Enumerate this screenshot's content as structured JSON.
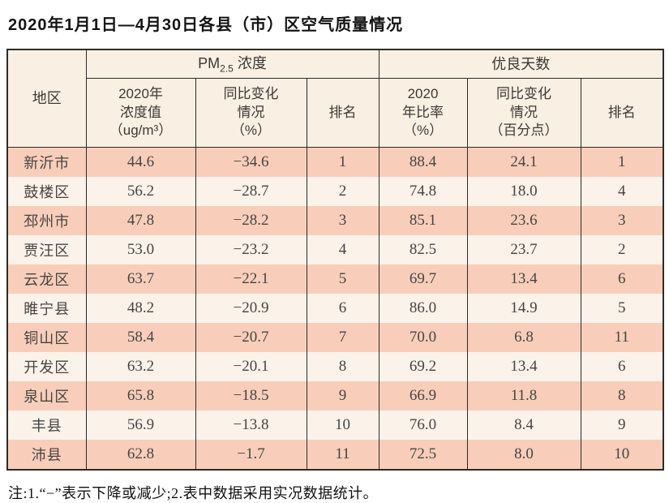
{
  "title": "2020年1月1日—4月30日各县（市）区空气质量情况",
  "table": {
    "headers": {
      "region": "地区",
      "pm_group": {
        "prefix": "PM",
        "sub": "2.5",
        "suffix": " 浓度"
      },
      "good_group": "优良天数",
      "pm_conc": "2020年\n浓度值\n（ug/m³）",
      "pm_change": "同比变化\n情况\n（%）",
      "pm_rank": "排名",
      "good_rate": "2020\n年比率\n（%）",
      "good_change": "同比变化\n情况\n（百分点）",
      "good_rank": "排名"
    },
    "rows": [
      {
        "region": "新沂市",
        "pm_value": "44.6",
        "pm_change": "−34.6",
        "pm_rank": "1",
        "good_rate": "88.4",
        "good_change": "24.1",
        "good_rank": "1"
      },
      {
        "region": "鼓楼区",
        "pm_value": "56.2",
        "pm_change": "−28.7",
        "pm_rank": "2",
        "good_rate": "74.8",
        "good_change": "18.0",
        "good_rank": "4"
      },
      {
        "region": "邳州市",
        "pm_value": "47.8",
        "pm_change": "−28.2",
        "pm_rank": "3",
        "good_rate": "85.1",
        "good_change": "23.6",
        "good_rank": "3"
      },
      {
        "region": "贾汪区",
        "pm_value": "53.0",
        "pm_change": "−23.2",
        "pm_rank": "4",
        "good_rate": "82.5",
        "good_change": "23.7",
        "good_rank": "2"
      },
      {
        "region": "云龙区",
        "pm_value": "63.7",
        "pm_change": "−22.1",
        "pm_rank": "5",
        "good_rate": "69.7",
        "good_change": "13.4",
        "good_rank": "6"
      },
      {
        "region": "睢宁县",
        "pm_value": "48.2",
        "pm_change": "−20.9",
        "pm_rank": "6",
        "good_rate": "86.0",
        "good_change": "14.9",
        "good_rank": "5"
      },
      {
        "region": "铜山区",
        "pm_value": "58.4",
        "pm_change": "−20.7",
        "pm_rank": "7",
        "good_rate": "70.0",
        "good_change": "6.8",
        "good_rank": "11"
      },
      {
        "region": "开发区",
        "pm_value": "63.2",
        "pm_change": "−20.1",
        "pm_rank": "8",
        "good_rate": "69.2",
        "good_change": "13.4",
        "good_rank": "6"
      },
      {
        "region": "泉山区",
        "pm_value": "65.8",
        "pm_change": "−18.5",
        "pm_rank": "9",
        "good_rate": "66.9",
        "good_change": "11.8",
        "good_rank": "8"
      },
      {
        "region": "丰县",
        "pm_value": "56.9",
        "pm_change": "−13.8",
        "pm_rank": "10",
        "good_rate": "76.0",
        "good_change": "8.4",
        "good_rank": "9"
      },
      {
        "region": "沛县",
        "pm_value": "62.8",
        "pm_change": "−1.7",
        "pm_rank": "11",
        "good_rate": "72.5",
        "good_change": "8.0",
        "good_rank": "10"
      }
    ]
  },
  "note": "注:1.“−”表示下降或减少;2.表中数据采用实况数据统计。",
  "colors": {
    "row_odd": "#f8cebb",
    "row_even": "#fbf2ea",
    "header_bg": "#f9efe3",
    "border": "#2e2b28",
    "data_text": "#474441"
  }
}
